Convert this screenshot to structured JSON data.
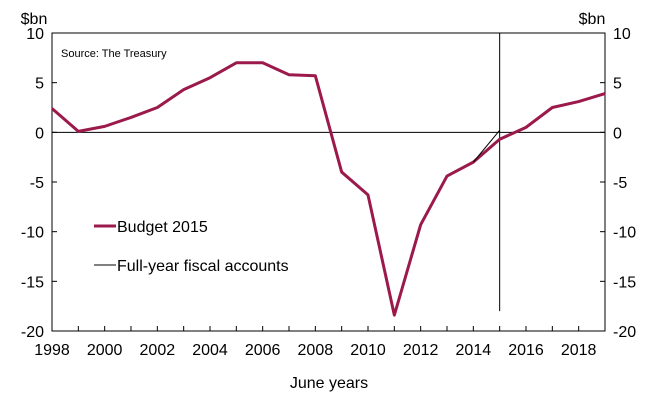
{
  "chart_data": {
    "type": "line",
    "title": "",
    "source": "Source: The Treasury",
    "xlabel": "June years",
    "ylabel_left": "$bn",
    "ylabel_right": "$bn",
    "xlim": [
      1998,
      2019
    ],
    "ylim": [
      -20,
      10
    ],
    "xticks": [
      1998,
      2000,
      2002,
      2004,
      2006,
      2008,
      2010,
      2012,
      2014,
      2016,
      2018
    ],
    "xtick_labels": [
      "1998",
      "2000",
      "2002",
      "2004",
      "2006",
      "2008",
      "2010",
      "2012",
      "2014",
      "2016",
      "2018"
    ],
    "yticks": [
      -20,
      -15,
      -10,
      -5,
      0,
      5,
      10
    ],
    "ytick_labels": [
      "-20",
      "-15",
      "-10",
      "-5",
      "0",
      "5",
      "10"
    ],
    "grid": false,
    "legend_position": "bottom-left",
    "vertical_marker_x": 2015,
    "zero_line": true,
    "series": [
      {
        "name": "Budget 2015",
        "color": "#9b1a4b",
        "x": [
          1998,
          1999,
          2000,
          2001,
          2002,
          2003,
          2004,
          2005,
          2006,
          2007,
          2008,
          2009,
          2010,
          2011,
          2012,
          2013,
          2014,
          2015,
          2016,
          2017,
          2018,
          2019
        ],
        "values": [
          2.4,
          0.1,
          0.6,
          1.5,
          2.5,
          4.3,
          5.5,
          7.0,
          7.0,
          5.8,
          5.7,
          -4.0,
          -6.3,
          -18.4,
          -9.3,
          -4.4,
          -3.0,
          -0.7,
          0.5,
          2.5,
          3.1,
          3.9
        ]
      },
      {
        "name": "Full-year fiscal accounts",
        "color": "#000000",
        "x": [
          2014,
          2015
        ],
        "values": [
          -3.0,
          0.2
        ]
      }
    ]
  }
}
